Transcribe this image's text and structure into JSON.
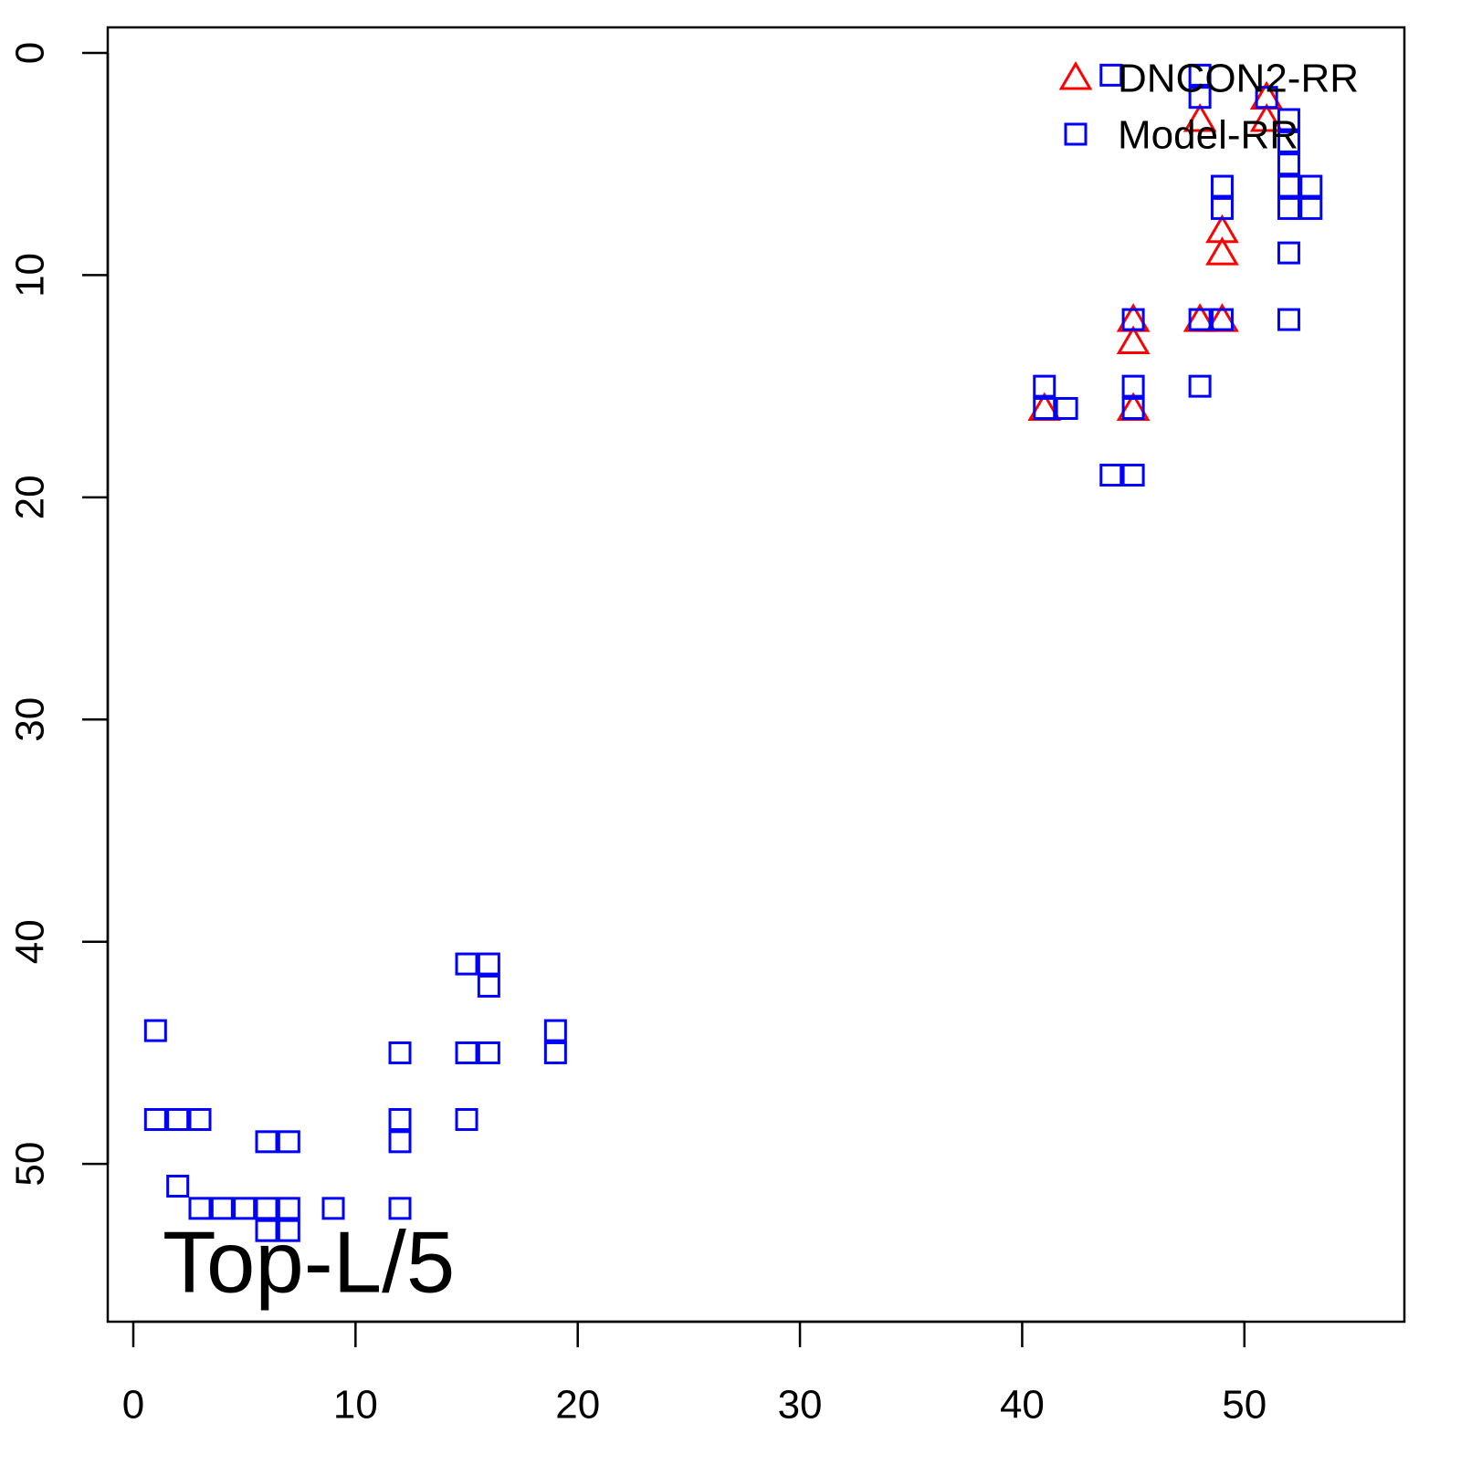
{
  "chart_data": {
    "type": "scatter",
    "annotation": "Top-L/5",
    "xlim": [
      -1.15,
      57.2
    ],
    "ylim": [
      57.1,
      -1.15
    ],
    "xticks": [
      0,
      10,
      20,
      30,
      40,
      50
    ],
    "yticks": [
      0,
      10,
      20,
      30,
      40,
      50
    ],
    "legend": "top-right",
    "series": [
      {
        "name": "DNCON2-RR",
        "color": "#ff0000",
        "marker": "triangle",
        "x": [
          51,
          51,
          48,
          49,
          49,
          45,
          45,
          48,
          49,
          41,
          45
        ],
        "values": [
          2,
          3,
          3,
          8,
          9,
          12,
          13,
          12,
          12,
          16,
          16
        ]
      },
      {
        "name": "Model-RR",
        "color": "#0000ff",
        "marker": "square",
        "x": [
          44,
          48,
          48,
          51,
          52,
          52,
          52,
          52,
          52,
          53,
          53,
          49,
          49,
          52,
          52,
          45,
          48,
          49,
          41,
          41,
          42,
          45,
          45,
          48,
          44,
          45,
          1,
          1,
          2,
          3,
          6,
          7,
          2,
          3,
          4,
          5,
          6,
          7,
          6,
          7,
          9,
          12,
          12,
          12,
          12,
          15,
          16,
          16,
          15,
          16,
          15,
          19,
          19
        ],
        "values": [
          1,
          1,
          2,
          2,
          3,
          4,
          5,
          6,
          7,
          6,
          7,
          6,
          7,
          9,
          12,
          12,
          12,
          12,
          15,
          16,
          16,
          15,
          16,
          15,
          19,
          19,
          44,
          48,
          48,
          48,
          49,
          49,
          51,
          52,
          52,
          52,
          52,
          52,
          53,
          53,
          52,
          45,
          48,
          49,
          52,
          41,
          41,
          42,
          45,
          45,
          48,
          44,
          45
        ]
      }
    ]
  }
}
